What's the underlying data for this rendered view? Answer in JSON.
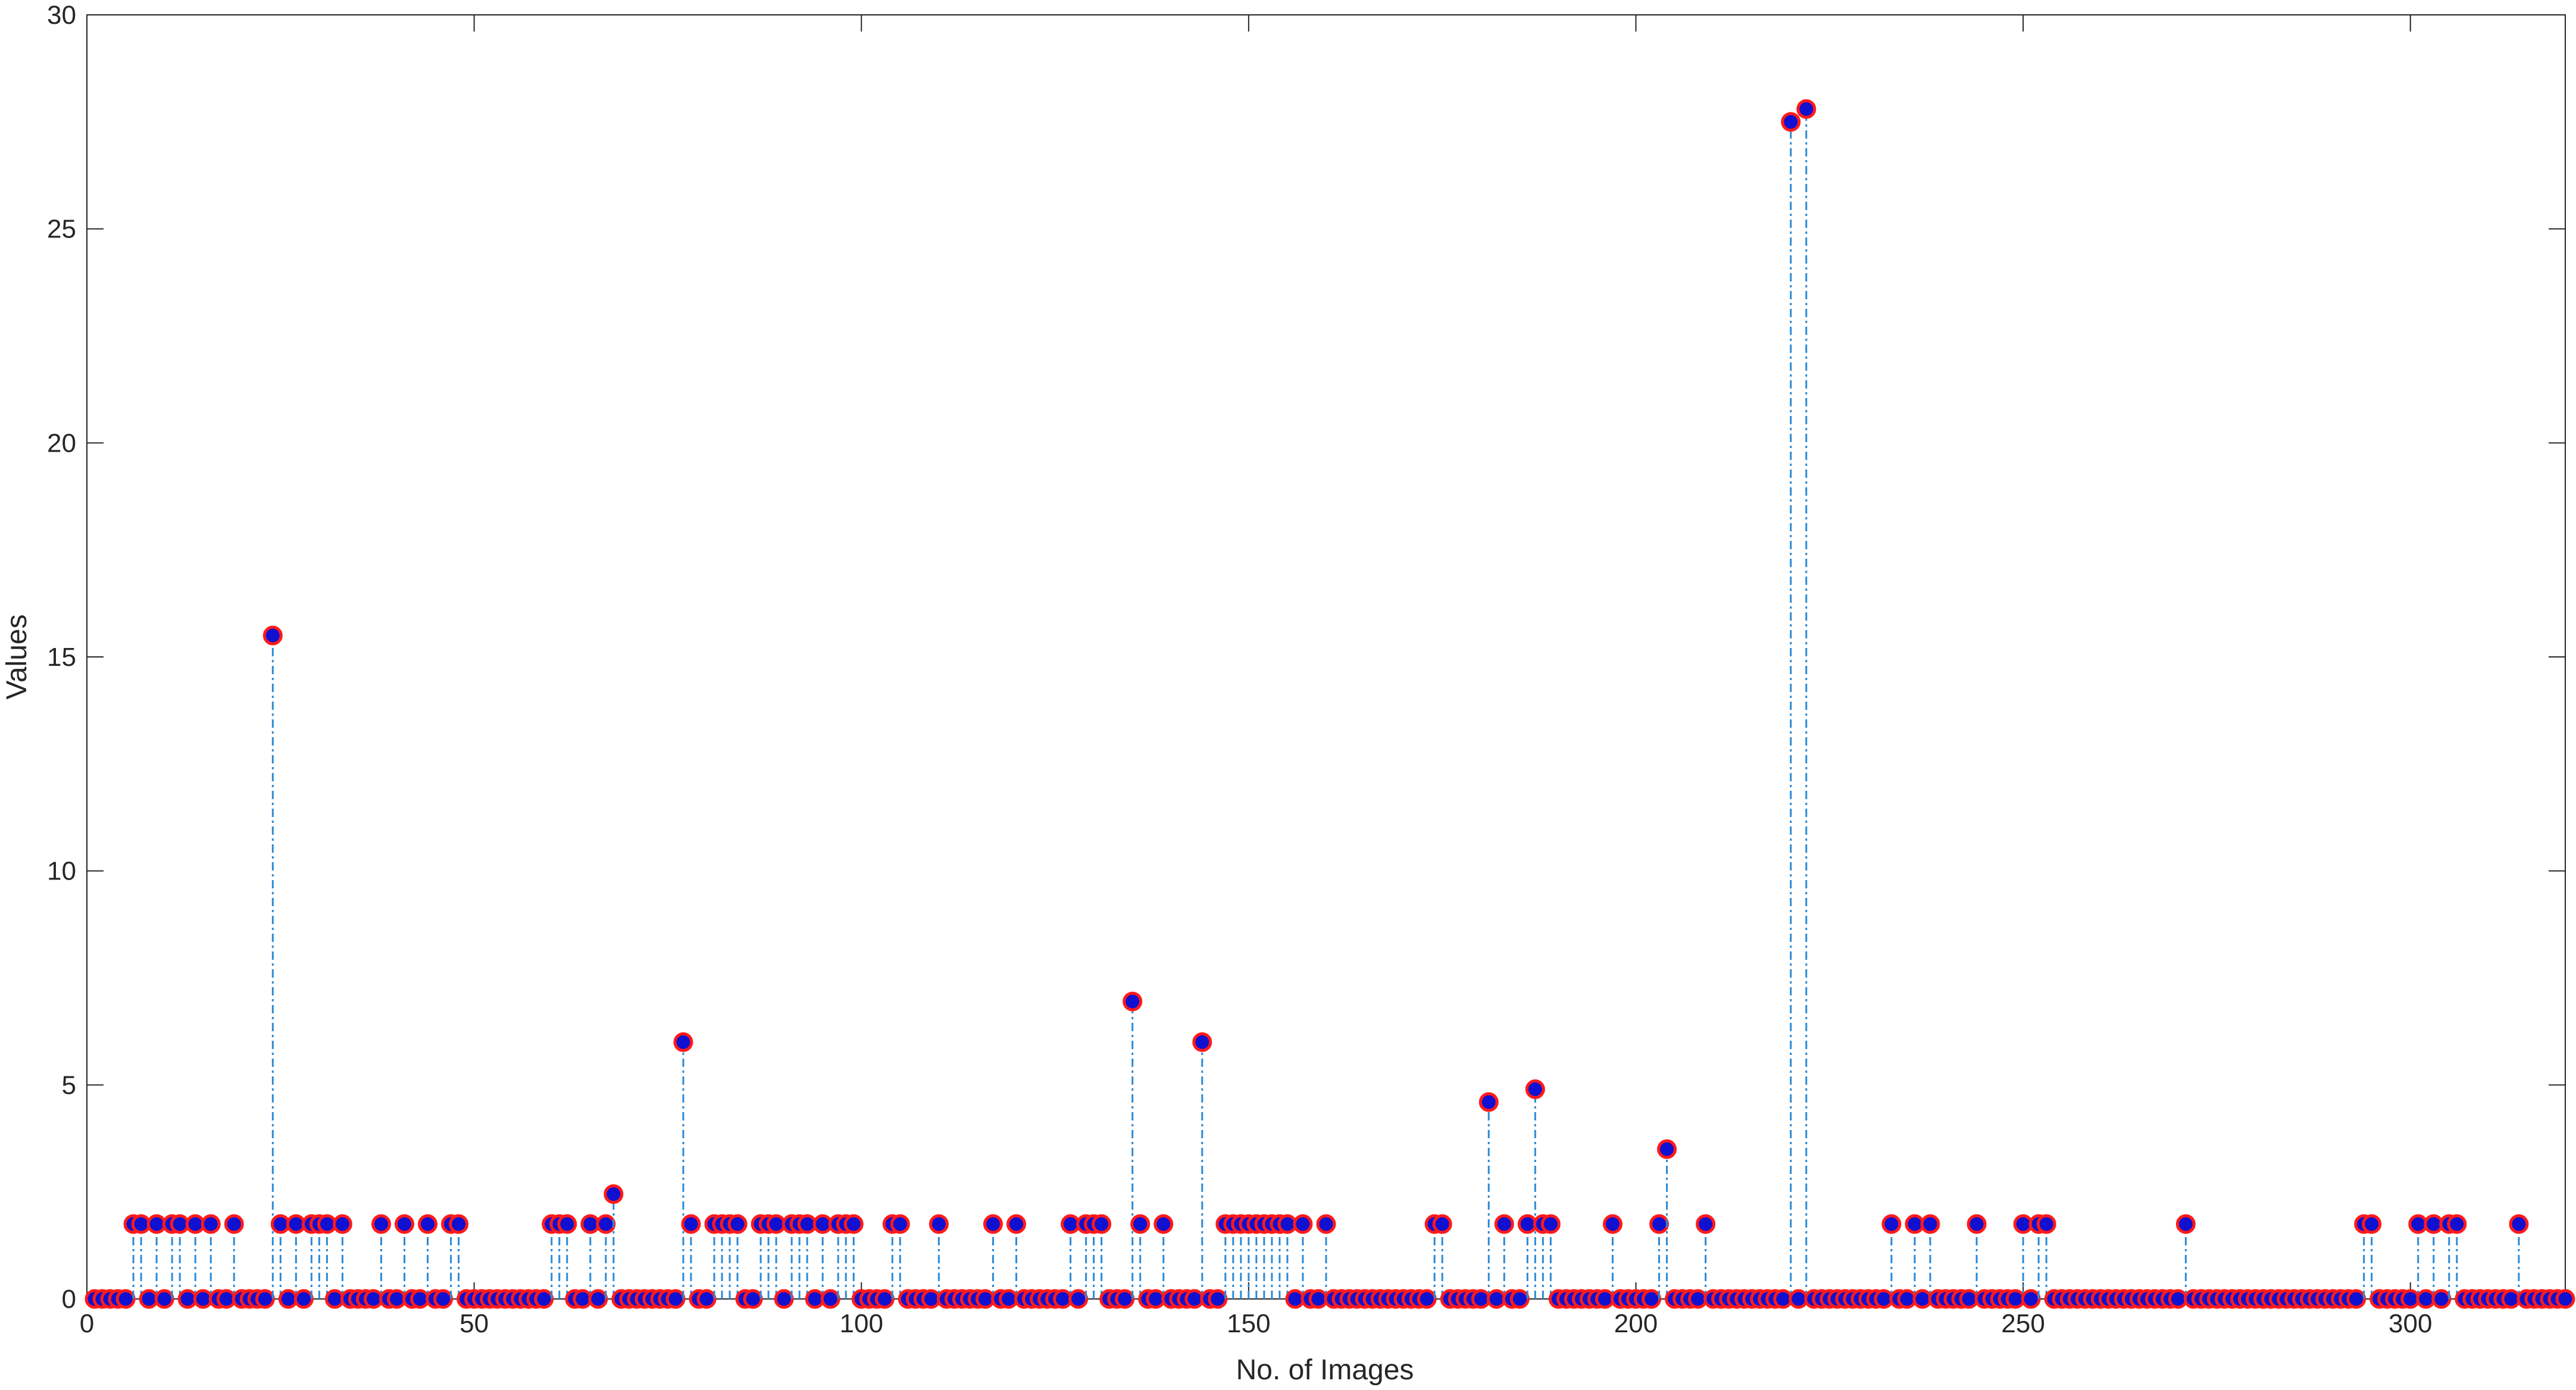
{
  "chart_data": {
    "type": "stem",
    "xlabel": "No. of Images",
    "ylabel": "Values",
    "xlim": [
      0,
      320
    ],
    "xticks": [
      0,
      50,
      100,
      150,
      200,
      250,
      300
    ],
    "ylim": [
      0,
      30
    ],
    "yticks": [
      0,
      5,
      10,
      15,
      20,
      25,
      30
    ],
    "grid": false,
    "stem_color": "#2b8ad6",
    "marker_fill": "#1010d0",
    "marker_edge": "#ff1a1a",
    "x": [
      1,
      2,
      3,
      4,
      5,
      6,
      7,
      8,
      9,
      10,
      11,
      12,
      13,
      14,
      15,
      16,
      17,
      18,
      19,
      20,
      21,
      22,
      23,
      24,
      25,
      26,
      27,
      28,
      29,
      30,
      31,
      32,
      33,
      34,
      35,
      36,
      37,
      38,
      39,
      40,
      41,
      42,
      43,
      44,
      45,
      46,
      47,
      48,
      49,
      50,
      51,
      52,
      53,
      54,
      55,
      56,
      57,
      58,
      59,
      60,
      61,
      62,
      63,
      64,
      65,
      66,
      67,
      68,
      69,
      70,
      71,
      72,
      73,
      74,
      75,
      76,
      77,
      78,
      79,
      80,
      81,
      82,
      83,
      84,
      85,
      86,
      87,
      88,
      89,
      90,
      91,
      92,
      93,
      94,
      95,
      96,
      97,
      98,
      99,
      100,
      101,
      102,
      103,
      104,
      105,
      106,
      107,
      108,
      109,
      110,
      111,
      112,
      113,
      114,
      115,
      116,
      117,
      118,
      119,
      120,
      121,
      122,
      123,
      124,
      125,
      126,
      127,
      128,
      129,
      130,
      131,
      132,
      133,
      134,
      135,
      136,
      137,
      138,
      139,
      140,
      141,
      142,
      143,
      144,
      145,
      146,
      147,
      148,
      149,
      150,
      151,
      152,
      153,
      154,
      155,
      156,
      157,
      158,
      159,
      160,
      161,
      162,
      163,
      164,
      165,
      166,
      167,
      168,
      169,
      170,
      171,
      172,
      173,
      174,
      175,
      176,
      177,
      178,
      179,
      180,
      181,
      182,
      183,
      184,
      185,
      186,
      187,
      188,
      189,
      190,
      191,
      192,
      193,
      194,
      195,
      196,
      197,
      198,
      199,
      200,
      201,
      202,
      203,
      204,
      205,
      206,
      207,
      208,
      209,
      210,
      211,
      212,
      213,
      214,
      215,
      216,
      217,
      218,
      219,
      220,
      221,
      222,
      223,
      224,
      225,
      226,
      227,
      228,
      229,
      230,
      231,
      232,
      233,
      234,
      235,
      236,
      237,
      238,
      239,
      240,
      241,
      242,
      243,
      244,
      245,
      246,
      247,
      248,
      249,
      250,
      251,
      252,
      253,
      254,
      255,
      256,
      257,
      258,
      259,
      260,
      261,
      262,
      263,
      264,
      265,
      266,
      267,
      268,
      269,
      270,
      271,
      272,
      273,
      274,
      275,
      276,
      277,
      278,
      279,
      280,
      281,
      282,
      283,
      284,
      285,
      286,
      287,
      288,
      289,
      290,
      291,
      292,
      293,
      294,
      295,
      296,
      297,
      298,
      299,
      300,
      301,
      302,
      303,
      304,
      305,
      306,
      307,
      308,
      309,
      310,
      311,
      312,
      313,
      314,
      315,
      316,
      317,
      318,
      319,
      320
    ],
    "values": [
      0,
      0,
      0,
      0,
      0,
      1.75,
      1.75,
      0,
      1.75,
      0,
      1.75,
      1.75,
      0,
      1.75,
      0,
      1.75,
      0,
      0,
      1.75,
      0,
      0,
      0,
      0,
      15.5,
      1.75,
      0,
      1.75,
      0,
      1.75,
      1.75,
      1.75,
      0,
      1.75,
      0,
      0,
      0,
      0,
      1.75,
      0,
      0,
      1.75,
      0,
      0,
      1.75,
      0,
      0,
      1.75,
      1.75,
      0,
      0,
      0,
      0,
      0,
      0,
      0,
      0,
      0,
      0,
      0,
      1.75,
      1.75,
      1.75,
      0,
      0,
      1.75,
      0,
      1.75,
      2.45,
      0,
      0,
      0,
      0,
      0,
      0,
      0,
      0,
      6,
      1.75,
      0,
      0,
      1.75,
      1.75,
      1.75,
      1.75,
      0,
      0,
      1.75,
      1.75,
      1.75,
      0,
      1.75,
      1.75,
      1.75,
      0,
      1.75,
      0,
      1.75,
      1.75,
      1.75,
      0,
      0,
      0,
      0,
      1.75,
      1.75,
      0,
      0,
      0,
      0,
      1.75,
      0,
      0,
      0,
      0,
      0,
      0,
      1.75,
      0,
      0,
      1.75,
      0,
      0,
      0,
      0,
      0,
      0,
      1.75,
      0,
      1.75,
      1.75,
      1.75,
      0,
      0,
      0,
      6.95,
      1.75,
      0,
      0,
      1.75,
      0,
      0,
      0,
      0,
      6,
      0,
      0,
      1.75,
      1.75,
      1.75,
      1.75,
      1.75,
      1.75,
      1.75,
      1.75,
      1.75,
      0,
      1.75,
      0,
      0,
      1.75,
      0,
      0,
      0,
      0,
      0,
      0,
      0,
      0,
      0,
      0,
      0,
      0,
      0,
      1.75,
      1.75,
      0,
      0,
      0,
      0,
      0,
      4.6,
      0,
      1.75,
      0,
      0,
      1.75,
      4.9,
      1.75,
      1.75,
      0,
      0,
      0,
      0,
      0,
      0,
      0,
      1.75,
      0,
      0,
      0,
      0,
      0,
      1.75,
      3.5,
      0,
      0,
      0,
      0,
      1.75,
      0,
      0,
      0,
      0,
      0,
      0,
      0,
      0,
      0,
      0,
      27.5,
      0,
      27.8,
      0,
      0,
      0,
      0,
      0,
      0,
      0,
      0,
      0,
      0,
      1.75,
      0,
      0,
      1.75,
      0,
      1.75,
      0,
      0,
      0,
      0,
      0,
      1.75,
      0,
      0,
      0,
      0,
      0,
      1.75,
      0,
      1.75,
      1.75,
      0,
      0,
      0,
      0,
      0,
      0,
      0,
      0,
      0,
      0,
      0,
      0,
      0,
      0,
      0,
      0,
      0,
      1.75,
      0,
      0,
      0,
      0,
      0,
      0,
      0,
      0,
      0,
      0,
      0,
      0,
      0,
      0,
      0,
      0,
      0,
      0,
      0,
      0,
      0,
      0,
      1.75,
      1.75,
      0,
      0,
      0,
      0,
      0,
      1.75,
      0,
      1.75,
      0,
      1.75,
      1.75,
      0,
      0,
      0,
      0,
      0,
      0,
      0,
      1.75,
      0,
      0,
      0,
      0,
      0,
      0
    ]
  }
}
